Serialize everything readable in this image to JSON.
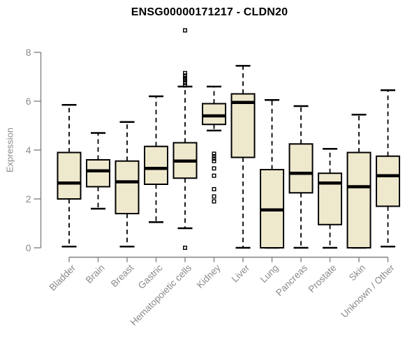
{
  "chart_data": {
    "type": "boxplot",
    "title": "ENSG00000171217 - CLDN20",
    "ylabel": "Expression",
    "xlabel": "",
    "ylim": [
      0,
      8
    ],
    "yticks": [
      0,
      2,
      4,
      6,
      8
    ],
    "grid": false,
    "legend": null,
    "colors": {
      "box_fill": "#EEE8CD",
      "box_stroke": "#000000",
      "median": "#000000",
      "whisker": "#000000",
      "axis": "#828282",
      "tick_label": "#8a8a8a",
      "title": "#000000"
    },
    "boxes": [
      {
        "category": "Bladder",
        "low": 0.05,
        "q1": 2.0,
        "median": 2.65,
        "q3": 3.9,
        "high": 5.85,
        "outliers": []
      },
      {
        "category": "Brain",
        "low": 1.6,
        "q1": 2.5,
        "median": 3.15,
        "q3": 3.6,
        "high": 4.7,
        "outliers": []
      },
      {
        "category": "Breast",
        "low": 0.05,
        "q1": 1.4,
        "median": 2.7,
        "q3": 3.55,
        "high": 5.15,
        "outliers": []
      },
      {
        "category": "Gastric",
        "low": 1.05,
        "q1": 2.6,
        "median": 3.25,
        "q3": 4.15,
        "high": 6.2,
        "outliers": []
      },
      {
        "category": "Hematopoietic cells",
        "low": 0.8,
        "q1": 2.85,
        "median": 3.55,
        "q3": 4.3,
        "high": 6.6,
        "outliers": [
          8.9,
          7.15,
          7.05,
          6.95,
          6.9,
          6.85,
          6.75,
          6.65,
          0.0
        ]
      },
      {
        "category": "Kidney",
        "low": 4.8,
        "q1": 5.05,
        "median": 5.4,
        "q3": 5.9,
        "high": 6.6,
        "outliers": [
          3.85,
          3.75,
          3.65,
          3.55,
          3.25,
          2.95,
          2.4,
          2.1,
          1.9
        ]
      },
      {
        "category": "Liver",
        "low": 0.0,
        "q1": 3.7,
        "median": 5.95,
        "q3": 6.3,
        "high": 7.45,
        "outliers": []
      },
      {
        "category": "Lung",
        "low": 0.0,
        "q1": 0.0,
        "median": 1.55,
        "q3": 3.2,
        "high": 6.05,
        "outliers": []
      },
      {
        "category": "Pancreas",
        "low": 0.0,
        "q1": 2.25,
        "median": 3.05,
        "q3": 4.25,
        "high": 5.8,
        "outliers": []
      },
      {
        "category": "Prostate",
        "low": 0.0,
        "q1": 0.95,
        "median": 2.65,
        "q3": 3.05,
        "high": 4.05,
        "outliers": []
      },
      {
        "category": "Skin",
        "low": 0.0,
        "q1": 0.0,
        "median": 2.5,
        "q3": 3.9,
        "high": 5.45,
        "outliers": []
      },
      {
        "category": "Unknown / Other",
        "low": 0.05,
        "q1": 1.7,
        "median": 2.95,
        "q3": 3.75,
        "high": 6.45,
        "outliers": []
      }
    ]
  }
}
